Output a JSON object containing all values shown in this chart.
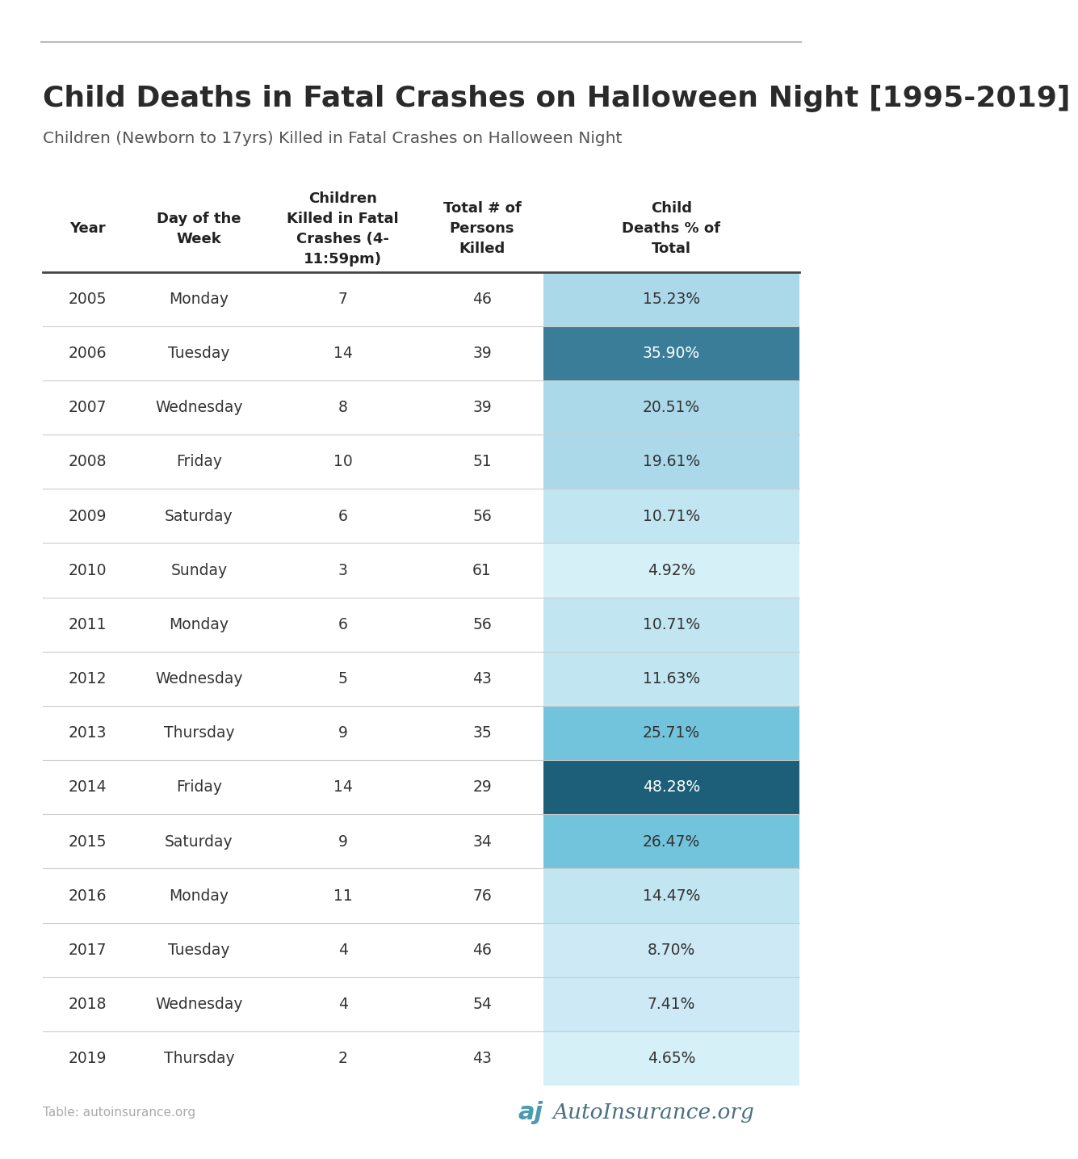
{
  "title": "Child Deaths in Fatal Crashes on Halloween Night [1995-2019]",
  "subtitle": "Children (Newborn to 17yrs) Killed in Fatal Crashes on Halloween Night",
  "col_headers": [
    "Year",
    "Day of the\nWeek",
    "Children\nKilled in Fatal\nCrashes (4-\n11:59pm)",
    "Total # of\nPersons\nKilled",
    "Child\nDeaths % of\nTotal"
  ],
  "rows": [
    [
      2005,
      "Monday",
      7,
      46,
      "15.23%"
    ],
    [
      2006,
      "Tuesday",
      14,
      39,
      "35.90%"
    ],
    [
      2007,
      "Wednesday",
      8,
      39,
      "20.51%"
    ],
    [
      2008,
      "Friday",
      10,
      51,
      "19.61%"
    ],
    [
      2009,
      "Saturday",
      6,
      56,
      "10.71%"
    ],
    [
      2010,
      "Sunday",
      3,
      61,
      "4.92%"
    ],
    [
      2011,
      "Monday",
      6,
      56,
      "10.71%"
    ],
    [
      2012,
      "Wednesday",
      5,
      43,
      "11.63%"
    ],
    [
      2013,
      "Thursday",
      9,
      35,
      "25.71%"
    ],
    [
      2014,
      "Friday",
      14,
      29,
      "48.28%"
    ],
    [
      2015,
      "Saturday",
      9,
      34,
      "26.47%"
    ],
    [
      2016,
      "Monday",
      11,
      76,
      "14.47%"
    ],
    [
      2017,
      "Tuesday",
      4,
      46,
      "8.70%"
    ],
    [
      2018,
      "Wednesday",
      4,
      54,
      "7.41%"
    ],
    [
      2019,
      "Thursday",
      2,
      43,
      "4.65%"
    ]
  ],
  "pct_colors": [
    "#acd9ea",
    "#3a7d99",
    "#acd9ea",
    "#acd9ea",
    "#c2e5f2",
    "#d6f0f8",
    "#c2e5f2",
    "#c2e5f2",
    "#72c4dc",
    "#1d5f78",
    "#72c4dc",
    "#c2e5f2",
    "#cce9f5",
    "#cce9f5",
    "#d6f0f8"
  ],
  "pct_text_colors": [
    "#333333",
    "#ffffff",
    "#333333",
    "#333333",
    "#333333",
    "#333333",
    "#333333",
    "#333333",
    "#333333",
    "#ffffff",
    "#333333",
    "#333333",
    "#333333",
    "#333333",
    "#333333"
  ],
  "bg_color": "#ffffff",
  "row_line_color": "#cccccc",
  "top_line_color": "#bbbbbb",
  "table_source": "Table: autoinsurance.org",
  "logo_text": "AutoInsurance.org"
}
